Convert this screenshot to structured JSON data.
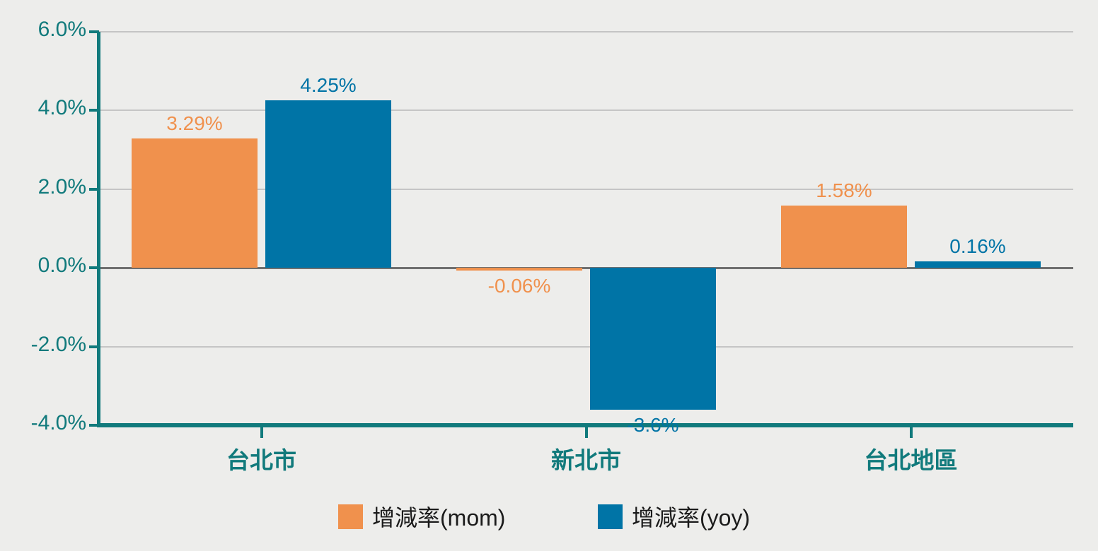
{
  "chart_data": {
    "type": "bar",
    "title": "",
    "xlabel": "",
    "ylabel": "",
    "categories": [
      "台北市",
      "新北市",
      "台北地區"
    ],
    "series": [
      {
        "name": "增減率(mom)",
        "color": "#F0914D",
        "values": [
          3.29,
          -0.06,
          1.58
        ],
        "labels": [
          "3.29%",
          "-0.06%",
          "1.58%"
        ]
      },
      {
        "name": "增減率(yoy)",
        "color": "#0074A6",
        "values": [
          4.25,
          -3.6,
          0.16
        ],
        "labels": [
          "4.25%",
          "-3.6%",
          "0.16%"
        ]
      }
    ],
    "ylim": [
      -4,
      6
    ],
    "y_ticks": [
      {
        "label": "6.0%",
        "value": 6
      },
      {
        "label": "4.0%",
        "value": 4
      },
      {
        "label": "2.0%",
        "value": 2
      },
      {
        "label": "0.0%",
        "value": 0
      },
      {
        "label": "-2.0%",
        "value": -2
      },
      {
        "label": "-4.0%",
        "value": -4
      }
    ],
    "grid": true,
    "legend_position": "bottom"
  },
  "legend": {
    "items": [
      {
        "label": "增減率(mom)",
        "color": "#F0914D"
      },
      {
        "label": "增減率(yoy)",
        "color": "#0074A6"
      }
    ]
  },
  "colors": {
    "background": "#EDEDEB",
    "axis": "#117A7C",
    "tick_label": "#117A7C",
    "category_label": "#117A7C",
    "gridline": "#C5C5C5",
    "zero_line": "#6F6F6F",
    "series_mom": "#F0914D",
    "series_yoy": "#0074A6",
    "legend_text": "#1B1B1B"
  }
}
